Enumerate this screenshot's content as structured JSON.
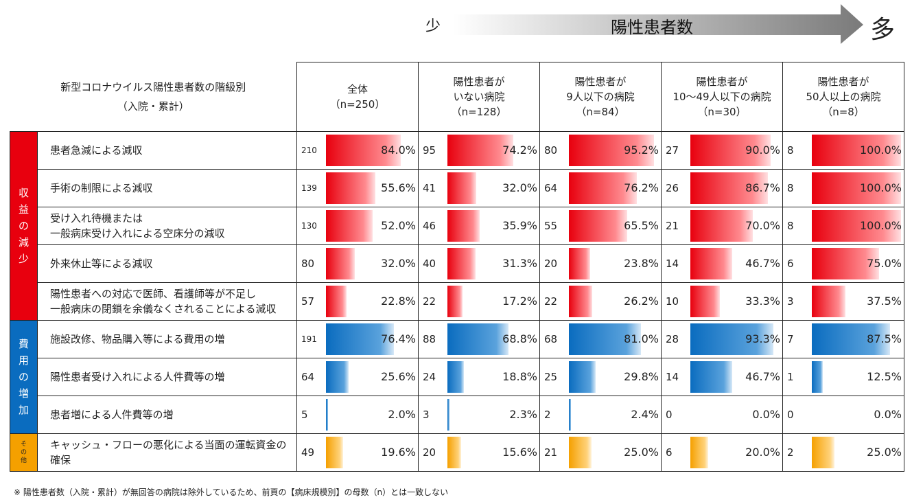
{
  "arrow": {
    "few": "少",
    "label": "陽性患者数",
    "many": "多"
  },
  "header": {
    "title_line1": "新型コロナウイルス陽性患者数の階級別",
    "title_line2": "（入院・累計）",
    "columns": [
      {
        "lines": [
          "全体",
          "（n=250）"
        ]
      },
      {
        "lines": [
          "陽性患者が",
          "いない病院",
          "（n=128）"
        ]
      },
      {
        "lines": [
          "陽性患者が",
          "9人以下の病院",
          "（n=84）"
        ]
      },
      {
        "lines": [
          "陽性患者が",
          "10～49人以下の病院",
          "（n=30）"
        ]
      },
      {
        "lines": [
          "陽性患者が",
          "50人以上の病院",
          "（n=8）"
        ]
      }
    ]
  },
  "categories": [
    {
      "label": "収益の減少",
      "color": "#e8000e"
    },
    {
      "label": "費用の増加",
      "color": "#0a6cbf"
    },
    {
      "label": "その他",
      "color": "#f5a000"
    }
  ],
  "chart_data": {
    "type": "table",
    "rows": [
      {
        "group": 0,
        "lines": [
          "患者急減による減収"
        ],
        "counts": [
          "210",
          "95",
          "80",
          "27",
          "8"
        ],
        "pcts": [
          84.0,
          74.2,
          95.2,
          90.0,
          100.0
        ],
        "labels": [
          "84.0%",
          "74.2%",
          "95.2%",
          "90.0%",
          "100.0%"
        ]
      },
      {
        "group": 0,
        "lines": [
          "手術の制限による減収"
        ],
        "counts": [
          "139",
          "41",
          "64",
          "26",
          "8"
        ],
        "pcts": [
          55.6,
          32.0,
          76.2,
          86.7,
          100.0
        ],
        "labels": [
          "55.6%",
          "32.0%",
          "76.2%",
          "86.7%",
          "100.0%"
        ]
      },
      {
        "group": 0,
        "lines": [
          "受け入れ待機または",
          "一般病床受け入れによる空床分の減収"
        ],
        "counts": [
          "130",
          "46",
          "55",
          "21",
          "8"
        ],
        "pcts": [
          52.0,
          35.9,
          65.5,
          70.0,
          100.0
        ],
        "labels": [
          "52.0%",
          "35.9%",
          "65.5%",
          "70.0%",
          "100.0%"
        ]
      },
      {
        "group": 0,
        "lines": [
          "外来休止等による減収"
        ],
        "counts": [
          "80",
          "40",
          "20",
          "14",
          "6"
        ],
        "pcts": [
          32.0,
          31.3,
          23.8,
          46.7,
          75.0
        ],
        "labels": [
          "32.0%",
          "31.3%",
          "23.8%",
          "46.7%",
          "75.0%"
        ]
      },
      {
        "group": 0,
        "lines": [
          "陽性患者への対応で医師、看護師等が不足し",
          "一般病床の閉鎖を余儀なくされることによる減収"
        ],
        "counts": [
          "57",
          "22",
          "22",
          "10",
          "3"
        ],
        "pcts": [
          22.8,
          17.2,
          26.2,
          33.3,
          37.5
        ],
        "labels": [
          "22.8%",
          "17.2%",
          "26.2%",
          "33.3%",
          "37.5%"
        ]
      },
      {
        "group": 1,
        "lines": [
          "施設改修、物品購入等による費用の増"
        ],
        "counts": [
          "191",
          "88",
          "68",
          "28",
          "7"
        ],
        "pcts": [
          76.4,
          68.8,
          81.0,
          93.3,
          87.5
        ],
        "labels": [
          "76.4%",
          "68.8%",
          "81.0%",
          "93.3%",
          "87.5%"
        ]
      },
      {
        "group": 1,
        "lines": [
          "陽性患者受け入れによる人件費等の増"
        ],
        "counts": [
          "64",
          "24",
          "25",
          "14",
          "1"
        ],
        "pcts": [
          25.6,
          18.8,
          29.8,
          46.7,
          12.5
        ],
        "labels": [
          "25.6%",
          "18.8%",
          "29.8%",
          "46.7%",
          "12.5%"
        ]
      },
      {
        "group": 1,
        "lines": [
          "患者増による人件費等の増"
        ],
        "counts": [
          "5",
          "3",
          "2",
          "0",
          "0"
        ],
        "pcts": [
          2.0,
          2.3,
          2.4,
          0.0,
          0.0
        ],
        "labels": [
          "2.0%",
          "2.3%",
          "2.4%",
          "0.0%",
          "0.0%"
        ]
      },
      {
        "group": 2,
        "lines": [
          "キャッシュ・フローの悪化による当面の運転資金の確保"
        ],
        "counts": [
          "49",
          "20",
          "21",
          "6",
          "2"
        ],
        "pcts": [
          19.6,
          15.6,
          25.0,
          20.0,
          25.0
        ],
        "labels": [
          "19.6%",
          "15.6%",
          "25.0%",
          "20.0%",
          "25.0%"
        ]
      }
    ]
  },
  "note": "※ 陽性患者数（入院・累計）が無回答の病院は除外しているため、前頁の【病床規模別】の母数（n）とは一致しない"
}
